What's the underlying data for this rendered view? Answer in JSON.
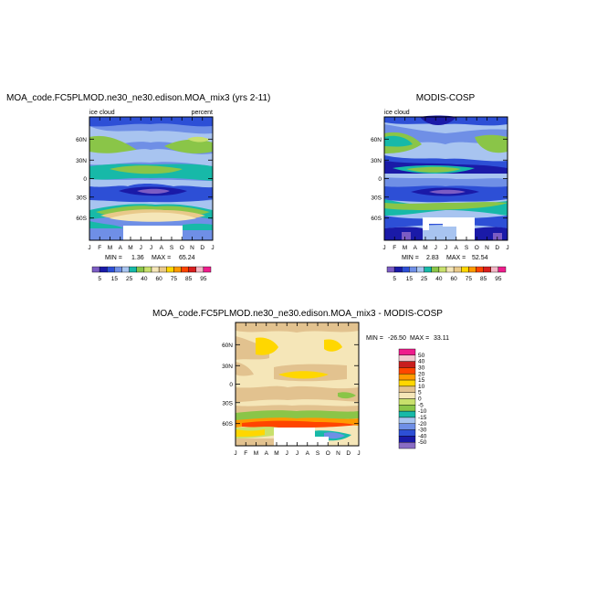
{
  "chart_data": [
    {
      "type": "heatmap",
      "title": "MOA_code.FC5PLMOD.ne30_ne30.edison.MOA_mix3 (yrs 2-11)",
      "left_label": "ice cloud",
      "right_label": "percent",
      "x_ticks": [
        "J",
        "F",
        "M",
        "A",
        "M",
        "J",
        "J",
        "A",
        "S",
        "O",
        "N",
        "D",
        "J"
      ],
      "y_ticks": [
        "60N",
        "30N",
        "0",
        "30S",
        "60S"
      ],
      "stats": {
        "min_label": "MIN =",
        "min": "1.36",
        "max_label": "MAX =",
        "max": "65.24"
      },
      "levels": [
        5,
        10,
        15,
        20,
        25,
        30,
        40,
        50,
        60,
        70,
        75,
        80,
        85,
        90,
        95
      ],
      "level_labels": [
        "5",
        "15",
        "25",
        "40",
        "60",
        "75",
        "85",
        "95"
      ],
      "colors": [
        "#7c5cc4",
        "#1a1aa8",
        "#2d4fd6",
        "#6f8fe6",
        "#a8c4f0",
        "#17b9a8",
        "#8ac548",
        "#c8e06c",
        "#f5e6b8",
        "#e9c98a",
        "#ffd700",
        "#ff9a00",
        "#ff4500",
        "#d81e1e",
        "#f2b8c6",
        "#ee1d8c"
      ]
    },
    {
      "type": "heatmap",
      "title": "MODIS-COSP",
      "left_label": "ice cloud",
      "x_ticks": [
        "J",
        "F",
        "M",
        "A",
        "M",
        "J",
        "J",
        "A",
        "S",
        "O",
        "N",
        "D",
        "J"
      ],
      "y_ticks": [
        "60N",
        "30N",
        "0",
        "30S",
        "60S"
      ],
      "stats": {
        "min_label": "MIN =",
        "min": "2.83",
        "max_label": "MAX =",
        "max": "52.54"
      },
      "levels": [
        5,
        10,
        15,
        20,
        25,
        30,
        40,
        50,
        60,
        70,
        75,
        80,
        85,
        90,
        95
      ],
      "level_labels": [
        "5",
        "15",
        "25",
        "40",
        "60",
        "75",
        "85",
        "95"
      ],
      "colors": [
        "#7c5cc4",
        "#1a1aa8",
        "#2d4fd6",
        "#6f8fe6",
        "#a8c4f0",
        "#17b9a8",
        "#8ac548",
        "#c8e06c",
        "#f5e6b8",
        "#e9c98a",
        "#ffd700",
        "#ff9a00",
        "#ff4500",
        "#d81e1e",
        "#f2b8c6",
        "#ee1d8c"
      ]
    },
    {
      "type": "heatmap",
      "title": "MOA_code.FC5PLMOD.ne30_ne30.edison.MOA_mix3 - MODIS-COSP",
      "x_ticks": [
        "J",
        "F",
        "M",
        "A",
        "M",
        "J",
        "J",
        "A",
        "S",
        "O",
        "N",
        "D",
        "J"
      ],
      "y_ticks": [
        "60N",
        "30N",
        "0",
        "30S",
        "60S"
      ],
      "stats": {
        "min_label": "MIN =",
        "min": "-26.50",
        "max_label": "MAX =",
        "max": "33.11"
      },
      "levels": [
        -50,
        -40,
        -30,
        -20,
        -15,
        -10,
        -5,
        0,
        5,
        10,
        15,
        20,
        30,
        40,
        50
      ],
      "level_labels": [
        "50",
        "40",
        "30",
        "20",
        "15",
        "10",
        "5",
        "0",
        "-5",
        "-10",
        "-15",
        "-20",
        "-30",
        "-40",
        "-50"
      ],
      "colors": [
        "#8a6cc4",
        "#1a1aa8",
        "#2d4fd6",
        "#6f8fe6",
        "#a8c4f0",
        "#17b9a8",
        "#8ac548",
        "#c8e06c",
        "#f5e6b8",
        "#e2c28f",
        "#ffd700",
        "#ff9a00",
        "#ff4500",
        "#c81e1e",
        "#f2c9cf",
        "#ee1d8c"
      ]
    }
  ]
}
